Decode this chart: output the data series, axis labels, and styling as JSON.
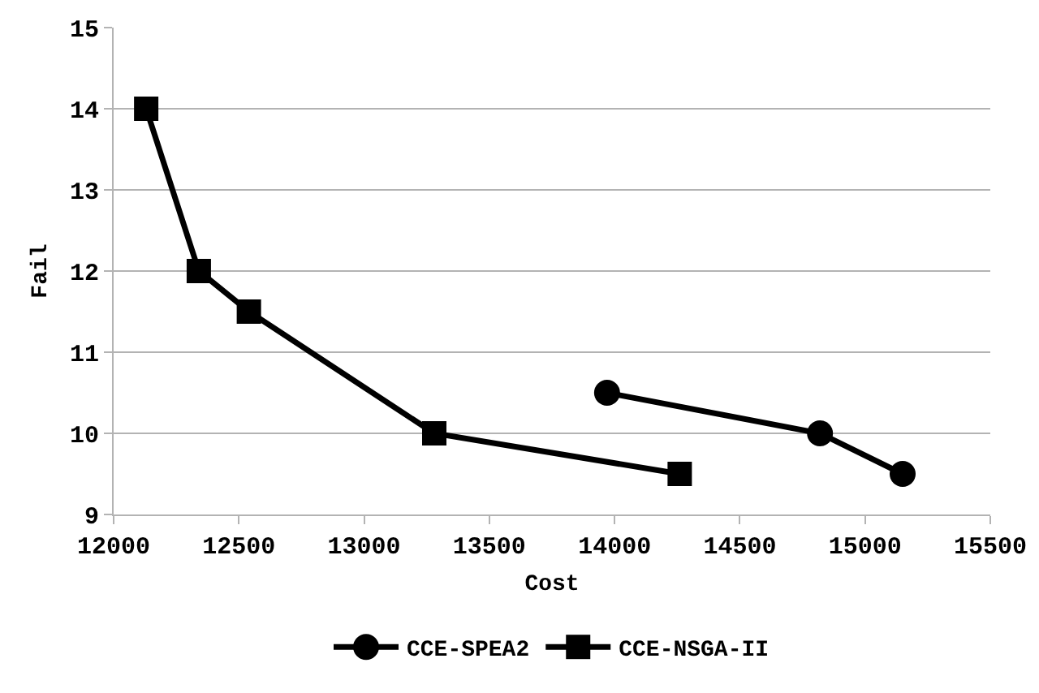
{
  "chart_data": {
    "type": "line",
    "xlabel": "Cost",
    "ylabel": "Fail",
    "xlim": [
      12000,
      15500
    ],
    "xticks": [
      12000,
      12500,
      13000,
      13500,
      14000,
      14500,
      15000,
      15500
    ],
    "ylim": [
      9,
      15
    ],
    "yticks": [
      9,
      10,
      11,
      12,
      13,
      14,
      15
    ],
    "grid": "y",
    "legend": "bottom",
    "line_style": "solid",
    "series": [
      {
        "name": "CCE-SPEA2",
        "color": "#000000",
        "marker": "circle",
        "x": [
          13970,
          14820,
          15150
        ],
        "values": [
          10.5,
          10,
          9.5
        ]
      },
      {
        "name": "CCE-NSGA-II",
        "color": "#000000",
        "marker": "square",
        "x": [
          12130,
          12340,
          12540,
          13280,
          14260
        ],
        "values": [
          14,
          12,
          11.5,
          10,
          9.5
        ]
      }
    ]
  }
}
